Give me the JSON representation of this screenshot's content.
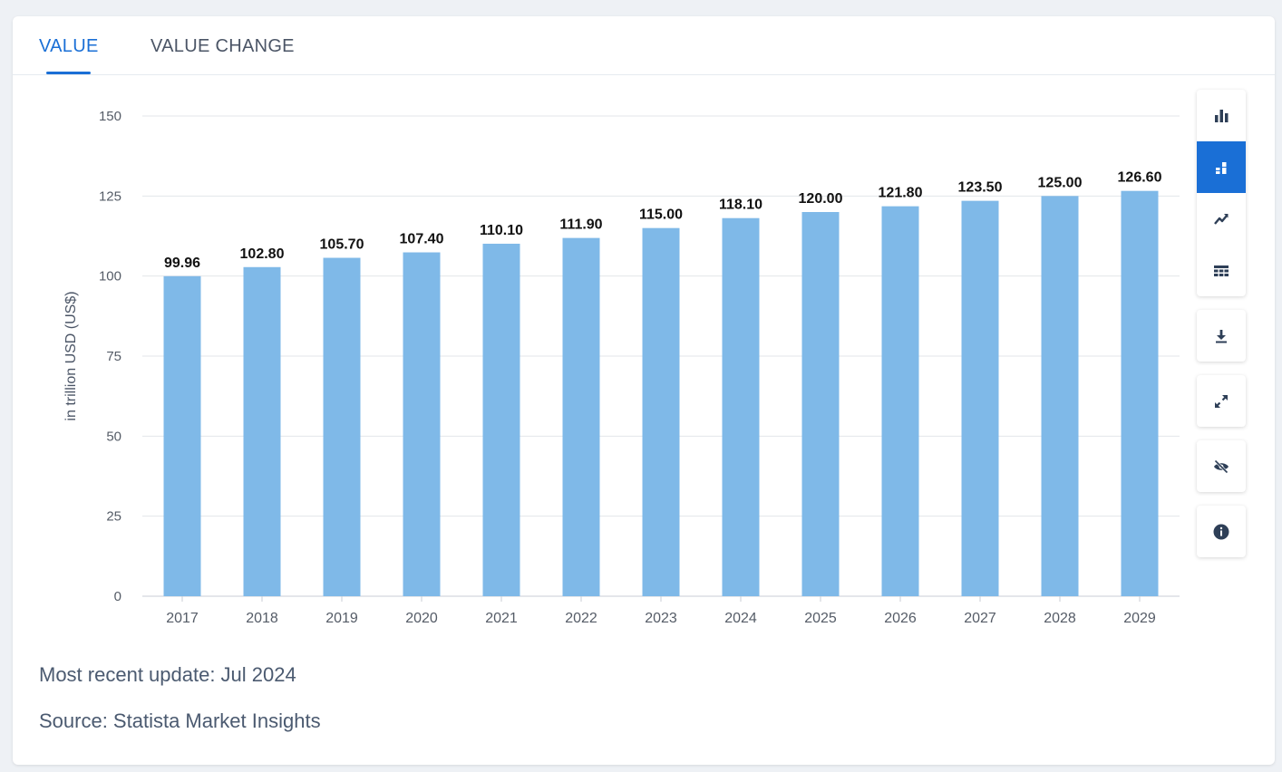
{
  "tabs": {
    "value_label": "VALUE",
    "value_change_label": "VALUE CHANGE"
  },
  "toolbar": {
    "buttons": [
      {
        "icon": "bar-chart-icon",
        "active": false
      },
      {
        "icon": "stacked-bar-icon",
        "active": true
      },
      {
        "icon": "trend-line-icon",
        "active": false
      },
      {
        "icon": "table-icon",
        "active": false
      },
      {
        "icon": "download-icon",
        "active": false
      },
      {
        "icon": "fullscreen-icon",
        "active": false
      },
      {
        "icon": "hide-icon",
        "active": false
      },
      {
        "icon": "info-icon",
        "active": false
      }
    ]
  },
  "colors": {
    "accent": "#1a6fd6",
    "bar": "#7fb9e8",
    "grid": "#e3e6ea",
    "toolbar_icon": "#2e3f57"
  },
  "chart_data": {
    "type": "bar",
    "categories": [
      "2017",
      "2018",
      "2019",
      "2020",
      "2021",
      "2022",
      "2023",
      "2024",
      "2025",
      "2026",
      "2027",
      "2028",
      "2029"
    ],
    "values": [
      99.96,
      102.8,
      105.7,
      107.4,
      110.1,
      111.9,
      115.0,
      118.1,
      120.0,
      121.8,
      123.5,
      125.0,
      126.6
    ],
    "value_labels": [
      "99.96",
      "102.80",
      "105.70",
      "107.40",
      "110.10",
      "111.90",
      "115.00",
      "118.10",
      "120.00",
      "121.80",
      "123.50",
      "125.00",
      "126.60"
    ],
    "ylabel": "in trillion USD (US$)",
    "xlabel": "",
    "ylim": [
      0,
      150
    ],
    "yticks": [
      0,
      25,
      50,
      75,
      100,
      125,
      150
    ],
    "grid": true
  },
  "footer": {
    "update_text": "Most recent update: Jul 2024",
    "source_text": "Source: Statista Market Insights"
  }
}
